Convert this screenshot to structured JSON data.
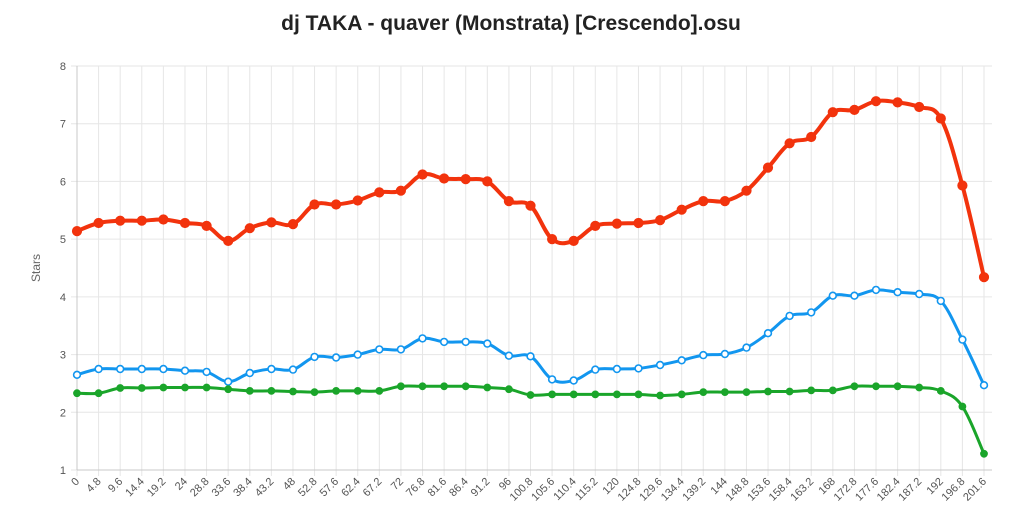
{
  "chart_data": {
    "type": "line",
    "title": "dj TAKA - quaver (Monstrata) [Crescendo].osu",
    "xlabel": "",
    "ylabel": "Stars",
    "ylim": [
      1,
      8
    ],
    "yticks": [
      1,
      2,
      3,
      4,
      5,
      6,
      7,
      8
    ],
    "grid": true,
    "categories": [
      "0",
      "4.8",
      "9.6",
      "14.4",
      "19.2",
      "24",
      "28.8",
      "33.6",
      "38.4",
      "43.2",
      "48",
      "52.8",
      "57.6",
      "62.4",
      "67.2",
      "72",
      "76.8",
      "81.6",
      "86.4",
      "91.2",
      "96",
      "100.8",
      "105.6",
      "110.4",
      "115.2",
      "120",
      "124.8",
      "129.6",
      "134.4",
      "139.2",
      "144",
      "148.8",
      "153.6",
      "158.4",
      "163.2",
      "168",
      "172.8",
      "177.6",
      "182.4",
      "187.2",
      "192",
      "196.8",
      "201.6"
    ],
    "series": [
      {
        "color": "#f2330d",
        "values": [
          5.14,
          5.28,
          5.32,
          5.32,
          5.34,
          5.28,
          5.23,
          4.97,
          5.19,
          5.29,
          5.26,
          5.6,
          5.6,
          5.67,
          5.81,
          5.84,
          6.12,
          6.05,
          6.04,
          6.0,
          5.66,
          5.58,
          5.0,
          4.97,
          5.23,
          5.27,
          5.28,
          5.33,
          5.51,
          5.66,
          5.66,
          5.84,
          6.24,
          6.66,
          6.77,
          7.2,
          7.24,
          7.39,
          7.37,
          7.29,
          7.09,
          5.93,
          4.34
        ]
      },
      {
        "color": "#1296ef",
        "values": [
          2.65,
          2.75,
          2.75,
          2.75,
          2.75,
          2.72,
          2.7,
          2.53,
          2.68,
          2.75,
          2.74,
          2.96,
          2.95,
          3.0,
          3.09,
          3.09,
          3.28,
          3.22,
          3.22,
          3.19,
          2.98,
          2.97,
          2.57,
          2.55,
          2.74,
          2.75,
          2.76,
          2.82,
          2.9,
          2.99,
          3.01,
          3.12,
          3.37,
          3.67,
          3.73,
          4.02,
          4.02,
          4.12,
          4.08,
          4.05,
          3.93,
          3.26,
          2.47
        ]
      },
      {
        "color": "#1aa52a",
        "values": [
          2.33,
          2.33,
          2.42,
          2.42,
          2.43,
          2.43,
          2.43,
          2.4,
          2.37,
          2.37,
          2.36,
          2.35,
          2.37,
          2.37,
          2.37,
          2.45,
          2.45,
          2.45,
          2.45,
          2.43,
          2.4,
          2.3,
          2.31,
          2.31,
          2.31,
          2.31,
          2.31,
          2.29,
          2.31,
          2.35,
          2.35,
          2.35,
          2.36,
          2.36,
          2.38,
          2.38,
          2.45,
          2.45,
          2.45,
          2.43,
          2.37,
          2.1,
          1.28
        ]
      }
    ]
  }
}
